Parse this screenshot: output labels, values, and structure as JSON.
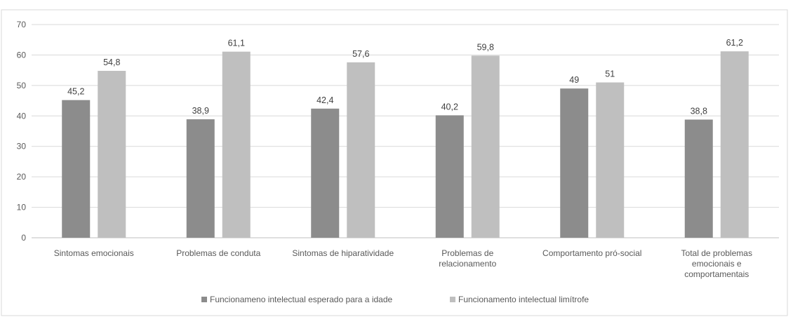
{
  "chart_data": {
    "type": "bar",
    "title": "",
    "xlabel": "",
    "ylabel": "",
    "ylim": [
      0,
      70
    ],
    "yticks": [
      0,
      10,
      20,
      30,
      40,
      50,
      60,
      70
    ],
    "grid": true,
    "legend_position": "bottom",
    "categories": [
      [
        "Sintomas emocionais"
      ],
      [
        "Problemas de conduta"
      ],
      [
        "Sintomas de hiparatividade"
      ],
      [
        "Problemas de",
        "relacionamento"
      ],
      [
        "Comportamento pró-social"
      ],
      [
        "Total de problemas",
        "emocionais e",
        "comportamentais"
      ]
    ],
    "series": [
      {
        "name": "Funcionameno intelectual esperado para a idade",
        "color": "#8c8c8c",
        "values": [
          45.2,
          38.9,
          42.4,
          40.2,
          49,
          38.8
        ],
        "labels": [
          "45,2",
          "38,9",
          "42,4",
          "40,2",
          "49",
          "38,8"
        ]
      },
      {
        "name": "Funcionamento intelectual limítrofe",
        "color": "#bfbfbf",
        "values": [
          54.8,
          61.1,
          57.6,
          59.8,
          51,
          61.2
        ],
        "labels": [
          "54,8",
          "61,1",
          "57,6",
          "59,8",
          "51",
          "61,2"
        ]
      }
    ]
  }
}
